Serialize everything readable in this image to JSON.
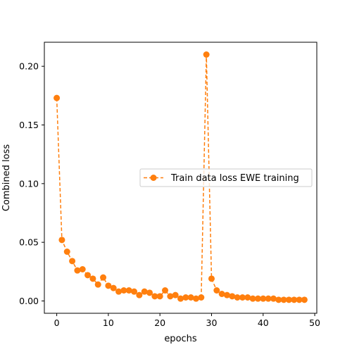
{
  "chart_data": {
    "type": "line",
    "title": "",
    "xlabel": "epochs",
    "ylabel": "Combined loss",
    "xlim": [
      -2.4,
      50.4
    ],
    "ylim": [
      -0.0105,
      0.2205
    ],
    "xticks": [
      0,
      10,
      20,
      30,
      40,
      50
    ],
    "yticks": [
      0.0,
      0.05,
      0.1,
      0.15,
      0.2
    ],
    "xtick_labels": [
      "0",
      "10",
      "20",
      "30",
      "40",
      "50"
    ],
    "ytick_labels": [
      "0.00",
      "0.05",
      "0.10",
      "0.15",
      "0.20"
    ],
    "grid": false,
    "legend_position": "center-right",
    "series": [
      {
        "name": "Train data loss EWE training",
        "color": "#ff7f0e",
        "line_style": "dashed",
        "marker": "circle",
        "x": [
          0,
          1,
          2,
          3,
          4,
          5,
          6,
          7,
          8,
          9,
          10,
          11,
          12,
          13,
          14,
          15,
          16,
          17,
          18,
          19,
          20,
          21,
          22,
          23,
          24,
          25,
          26,
          27,
          28,
          29,
          30,
          31,
          32,
          33,
          34,
          35,
          36,
          37,
          38,
          39,
          40,
          41,
          42,
          43,
          44,
          45,
          46,
          47,
          48
        ],
        "y": [
          0.173,
          0.052,
          0.042,
          0.034,
          0.026,
          0.027,
          0.022,
          0.019,
          0.014,
          0.02,
          0.013,
          0.011,
          0.008,
          0.009,
          0.009,
          0.008,
          0.005,
          0.008,
          0.007,
          0.004,
          0.004,
          0.009,
          0.004,
          0.005,
          0.002,
          0.003,
          0.003,
          0.002,
          0.003,
          0.21,
          0.019,
          0.009,
          0.006,
          0.005,
          0.004,
          0.003,
          0.003,
          0.003,
          0.002,
          0.002,
          0.002,
          0.002,
          0.002,
          0.001,
          0.001,
          0.001,
          0.001,
          0.001,
          0.001
        ]
      }
    ]
  }
}
